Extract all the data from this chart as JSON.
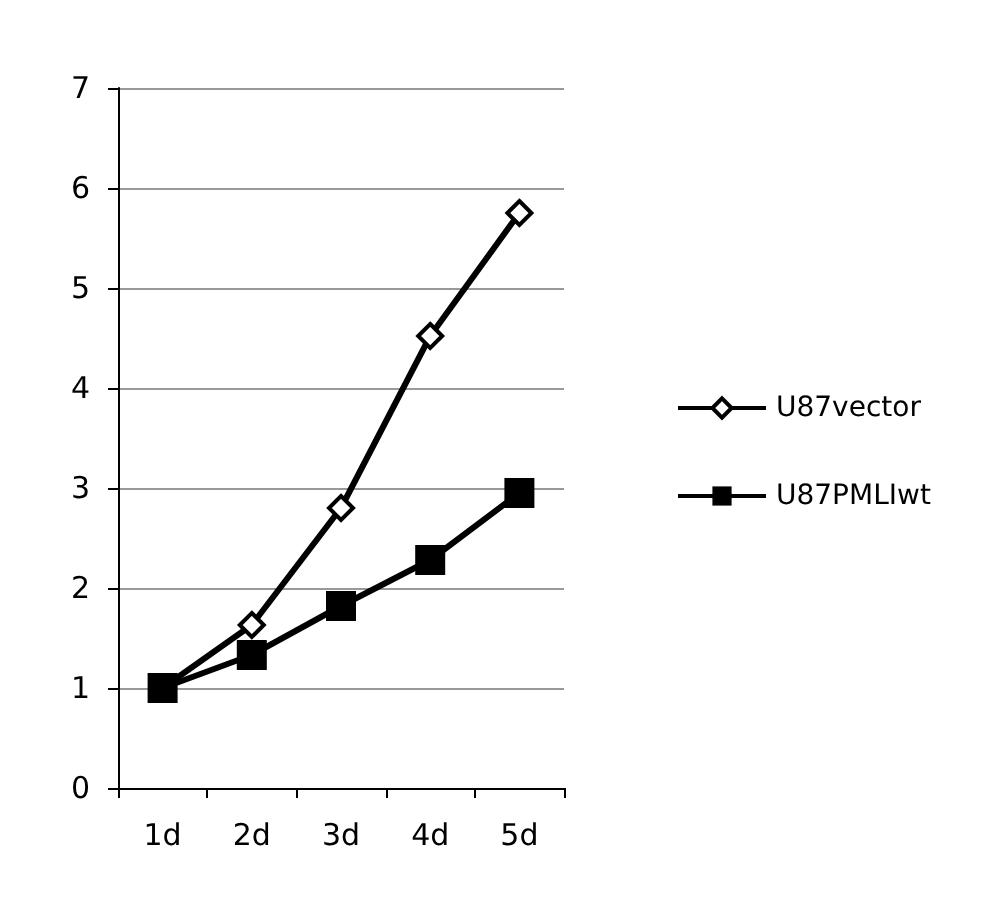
{
  "chart_data": {
    "type": "line",
    "categories": [
      "1d",
      "2d",
      "3d",
      "4d",
      "5d"
    ],
    "series": [
      {
        "name": "U87vector",
        "color": "#000000",
        "marker": "diamond",
        "values": [
          1,
          1.63,
          2.8,
          4.52,
          5.75
        ]
      },
      {
        "name": "U87PMLIwt",
        "color": "#000000",
        "marker": "square",
        "values": [
          1,
          1.33,
          1.82,
          2.28,
          2.95
        ]
      }
    ],
    "ylim": [
      0,
      7
    ],
    "yticks": [
      0,
      1,
      2,
      3,
      4,
      5,
      6,
      7
    ],
    "grid": "y",
    "legend": "right",
    "line_style": "solid"
  }
}
